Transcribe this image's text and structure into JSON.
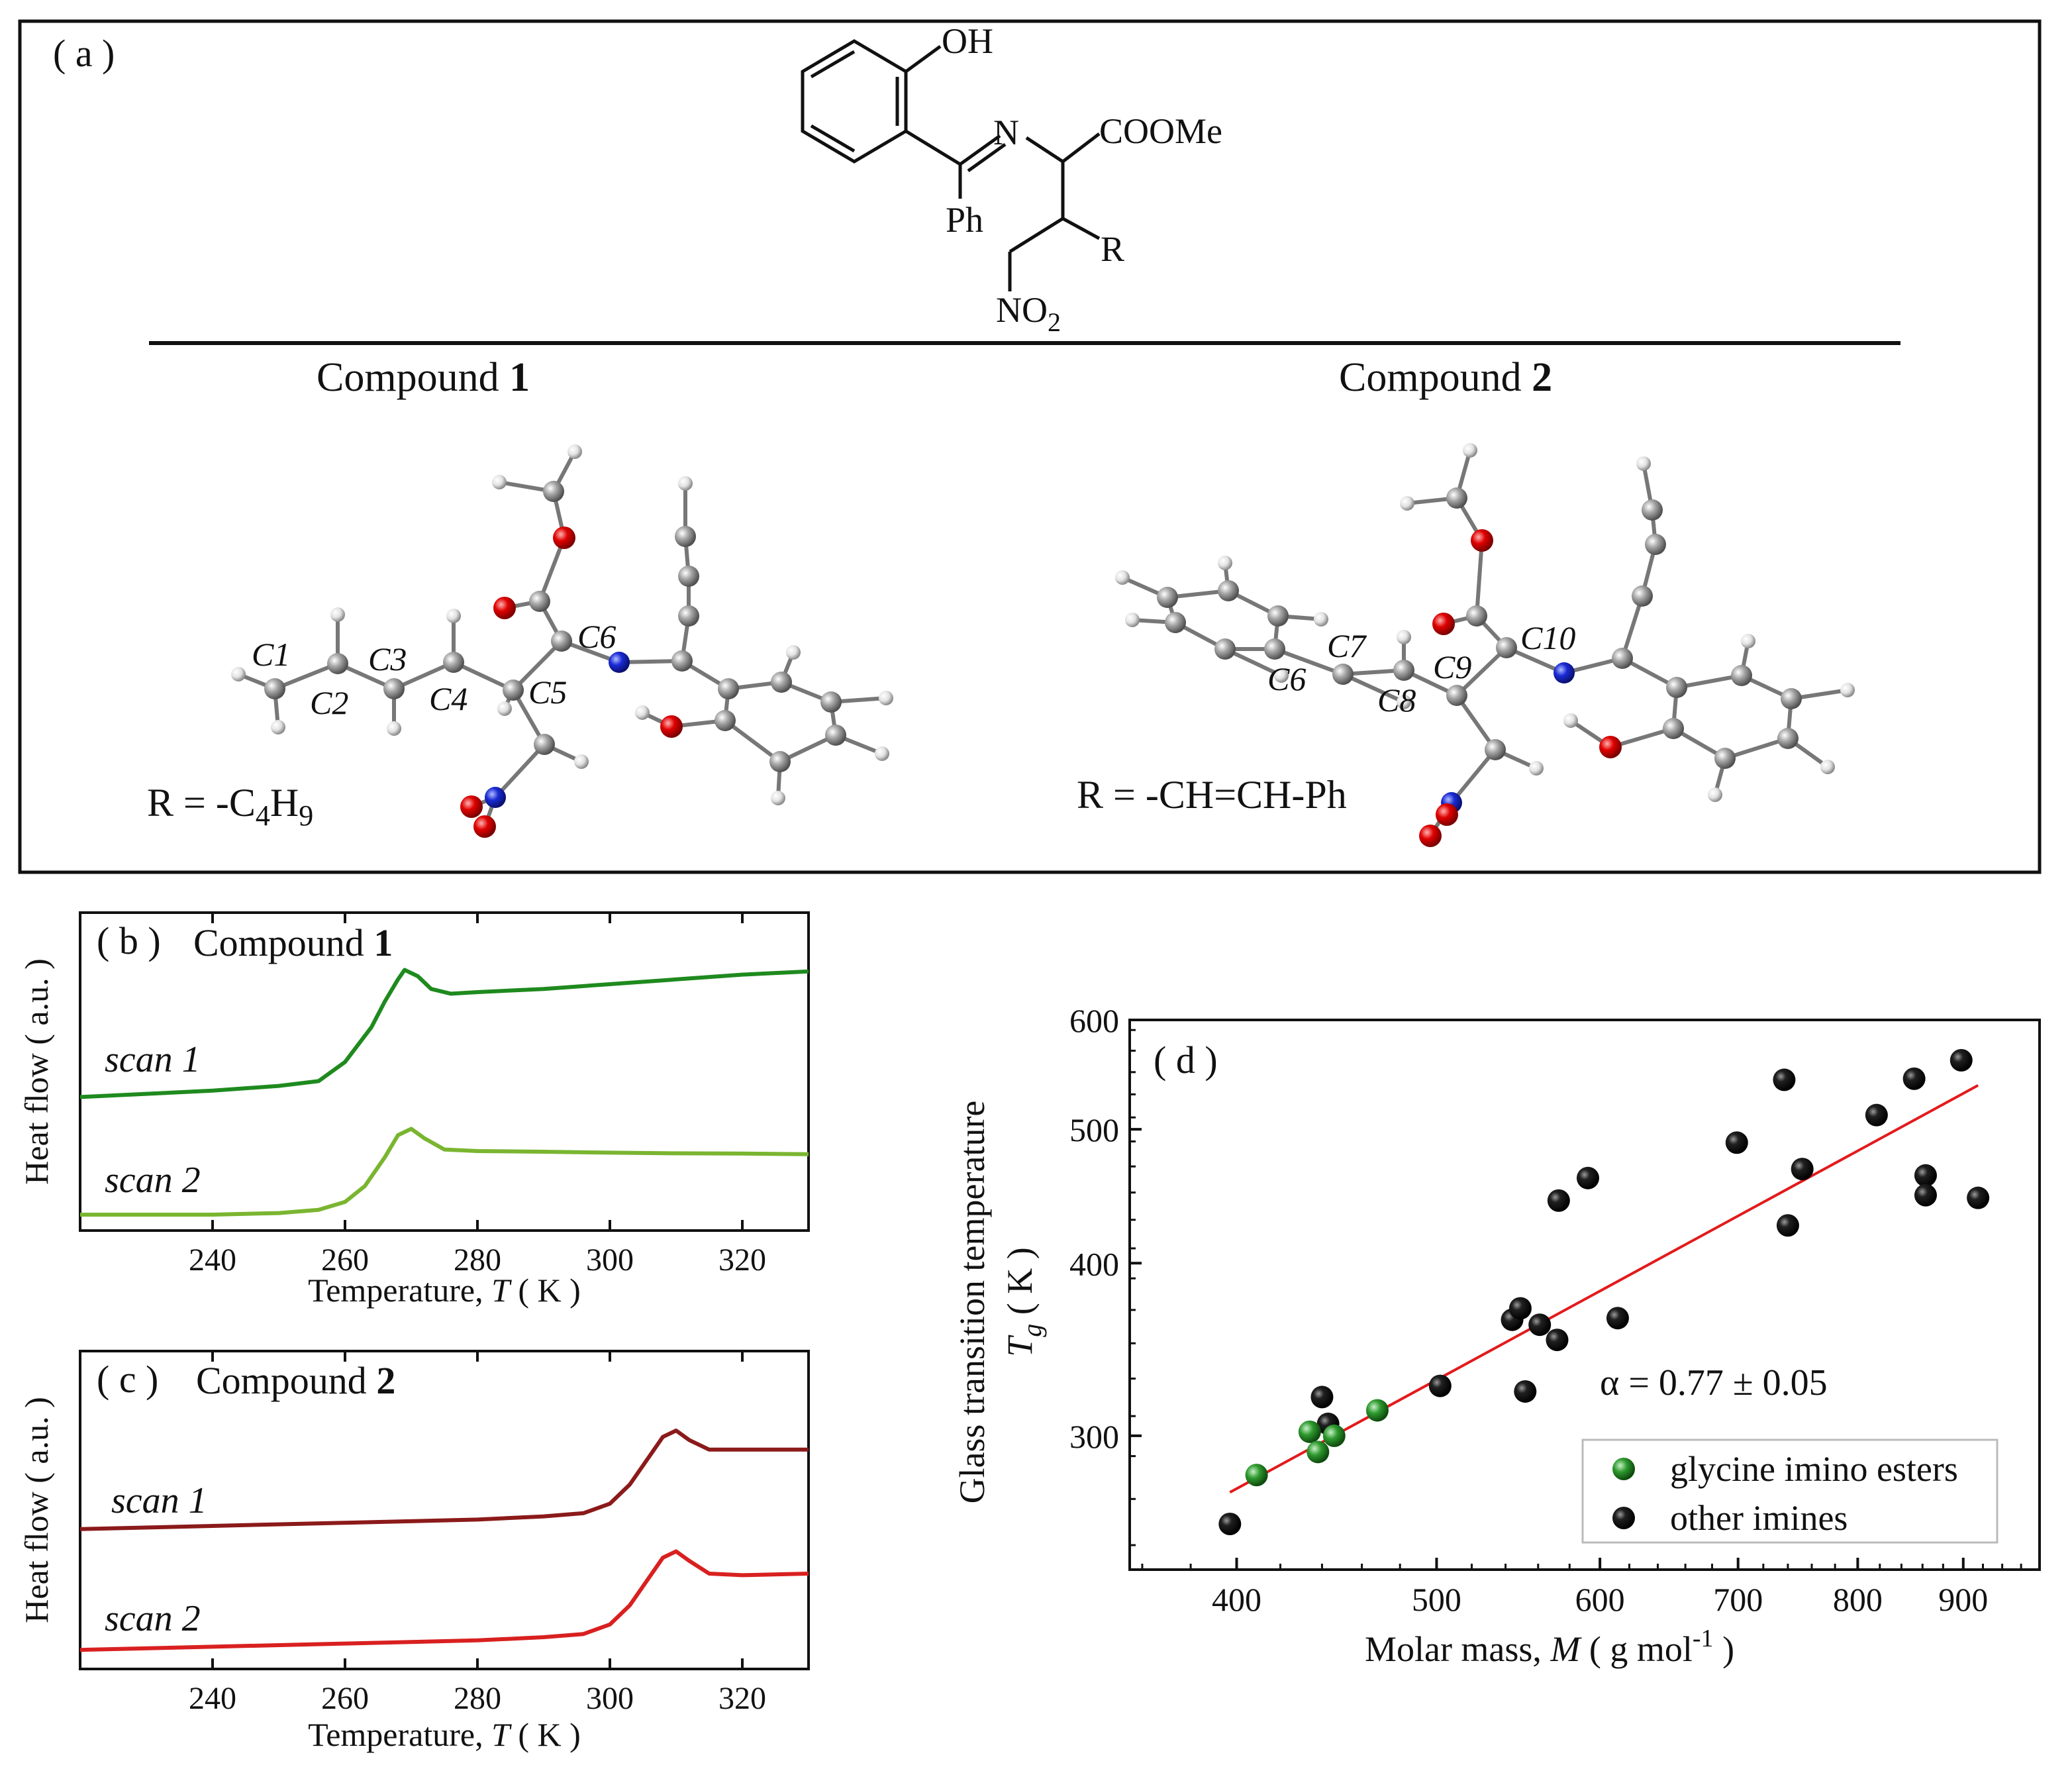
{
  "panel_a": {
    "label": "( a )",
    "structure_labels": {
      "oh": "OH",
      "n": "N",
      "coome": "COOMe",
      "ph": "Ph",
      "r": "R",
      "no2_main": "NO",
      "no2_sub": "2"
    },
    "compound1": {
      "title_prefix": "Compound ",
      "title_num": "1",
      "atom_labels": [
        "C1",
        "C2",
        "C3",
        "C4",
        "C5",
        "C6"
      ],
      "r_prefix": "R = -C",
      "r_sub1": "4",
      "r_mid": "H",
      "r_sub2": "9"
    },
    "compound2": {
      "title_prefix": "Compound ",
      "title_num": "2",
      "atom_labels": [
        "C6",
        "C7",
        "C8",
        "C9",
        "C10"
      ],
      "r_text": "R = -CH=CH-Ph"
    }
  },
  "colors": {
    "c1_scan1": "#1e8a1e",
    "c1_scan2": "#7ab530",
    "c2_scan1": "#8b1a1a",
    "c2_scan2": "#d92020",
    "fit_line": "#e31a1c",
    "glycine": "#2e9a2e",
    "other": "#111111",
    "atom_c": "#8c8c8c",
    "atom_o": "#d40000",
    "atom_n": "#1a2bd4",
    "atom_h": "#dddddd"
  },
  "chart_data": [
    {
      "id": "b",
      "type": "line",
      "label": "( b )",
      "title_prefix": "Compound ",
      "title_num": "1",
      "xlabel_prefix": "Temperature, ",
      "xlabel_var": "T",
      "xlabel_unit": " ( K )",
      "ylabel": "Heat flow ( a.u. )",
      "xlim": [
        220,
        330
      ],
      "xticks": [
        240,
        260,
        280,
        300,
        320
      ],
      "ylim": [
        0,
        1
      ],
      "series": [
        {
          "name": "scan 1",
          "x": [
            220,
            240,
            250,
            256,
            260,
            264,
            266,
            268,
            269,
            271,
            273,
            276,
            280,
            290,
            300,
            310,
            320,
            330
          ],
          "y": [
            0.42,
            0.44,
            0.455,
            0.47,
            0.53,
            0.64,
            0.72,
            0.79,
            0.82,
            0.8,
            0.76,
            0.745,
            0.75,
            0.76,
            0.775,
            0.79,
            0.805,
            0.815
          ]
        },
        {
          "name": "scan 2",
          "x": [
            220,
            240,
            250,
            256,
            260,
            263,
            266,
            268,
            270,
            272,
            275,
            280,
            290,
            300,
            310,
            320,
            330
          ],
          "y": [
            0.05,
            0.05,
            0.055,
            0.065,
            0.09,
            0.14,
            0.23,
            0.3,
            0.32,
            0.29,
            0.255,
            0.25,
            0.248,
            0.245,
            0.243,
            0.242,
            0.24
          ]
        }
      ]
    },
    {
      "id": "c",
      "type": "line",
      "label": "( c )",
      "title_prefix": "Compound ",
      "title_num": "2",
      "xlabel_prefix": "Temperature, ",
      "xlabel_var": "T",
      "xlabel_unit": " ( K )",
      "ylabel": "Heat flow ( a.u. )",
      "xlim": [
        220,
        330
      ],
      "xticks": [
        240,
        260,
        280,
        300,
        320
      ],
      "ylim": [
        0,
        1
      ],
      "series": [
        {
          "name": "scan 1",
          "x": [
            220,
            240,
            260,
            280,
            290,
            296,
            300,
            303,
            306,
            308,
            310,
            312,
            315,
            320,
            330
          ],
          "y": [
            0.44,
            0.45,
            0.46,
            0.47,
            0.48,
            0.49,
            0.52,
            0.58,
            0.67,
            0.73,
            0.75,
            0.72,
            0.69,
            0.69,
            0.69
          ]
        },
        {
          "name": "scan 2",
          "x": [
            220,
            240,
            260,
            280,
            290,
            296,
            300,
            303,
            306,
            308,
            310,
            312,
            315,
            320,
            330
          ],
          "y": [
            0.06,
            0.07,
            0.08,
            0.09,
            0.1,
            0.11,
            0.14,
            0.2,
            0.29,
            0.35,
            0.37,
            0.34,
            0.3,
            0.295,
            0.3
          ]
        }
      ]
    },
    {
      "id": "d",
      "type": "scatter",
      "label": "( d )",
      "xscale": "log",
      "yscale": "log",
      "xlim": [
        355,
        980
      ],
      "ylim": [
        240,
        600
      ],
      "xticks": [
        400,
        500,
        600,
        700,
        800,
        900
      ],
      "yticks": [
        300,
        400,
        500,
        600
      ],
      "xlabel_prefix": "Molar mass, ",
      "xlabel_var": "M",
      "xlabel_unit_pre": " ( g mol",
      "xlabel_unit_sup": "-1",
      "xlabel_unit_post": " )",
      "ylabel_main": "Glass transition temperature",
      "ylabel_var": "T",
      "ylabel_sub": "g",
      "ylabel_unit": " ( K )",
      "annotation": "α = 0.77 ± 0.05",
      "legend_position": "bottom-right",
      "fit": {
        "x": [
          397,
          915
        ],
        "y": [
          273,
          538
        ]
      },
      "series": [
        {
          "name": "glycine imino esters",
          "points": [
            [
              409,
              281
            ],
            [
              434,
              302
            ],
            [
              438,
              292
            ],
            [
              446,
              300
            ],
            [
              468,
              313
            ]
          ]
        },
        {
          "name": "other imines",
          "points": [
            [
              397,
              259
            ],
            [
              440,
              320
            ],
            [
              443,
              306
            ],
            [
              502,
              326
            ],
            [
              544,
              364
            ],
            [
              549,
              371
            ],
            [
              552,
              323
            ],
            [
              561,
              361
            ],
            [
              572,
              352
            ],
            [
              573,
              444
            ],
            [
              592,
              461
            ],
            [
              612,
              365
            ],
            [
              699,
              489
            ],
            [
              737,
              543
            ],
            [
              740,
              426
            ],
            [
              752,
              468
            ],
            [
              817,
              512
            ],
            [
              852,
              544
            ],
            [
              863,
              463
            ],
            [
              863,
              448
            ],
            [
              898,
              561
            ],
            [
              915,
              446
            ]
          ]
        }
      ]
    }
  ]
}
